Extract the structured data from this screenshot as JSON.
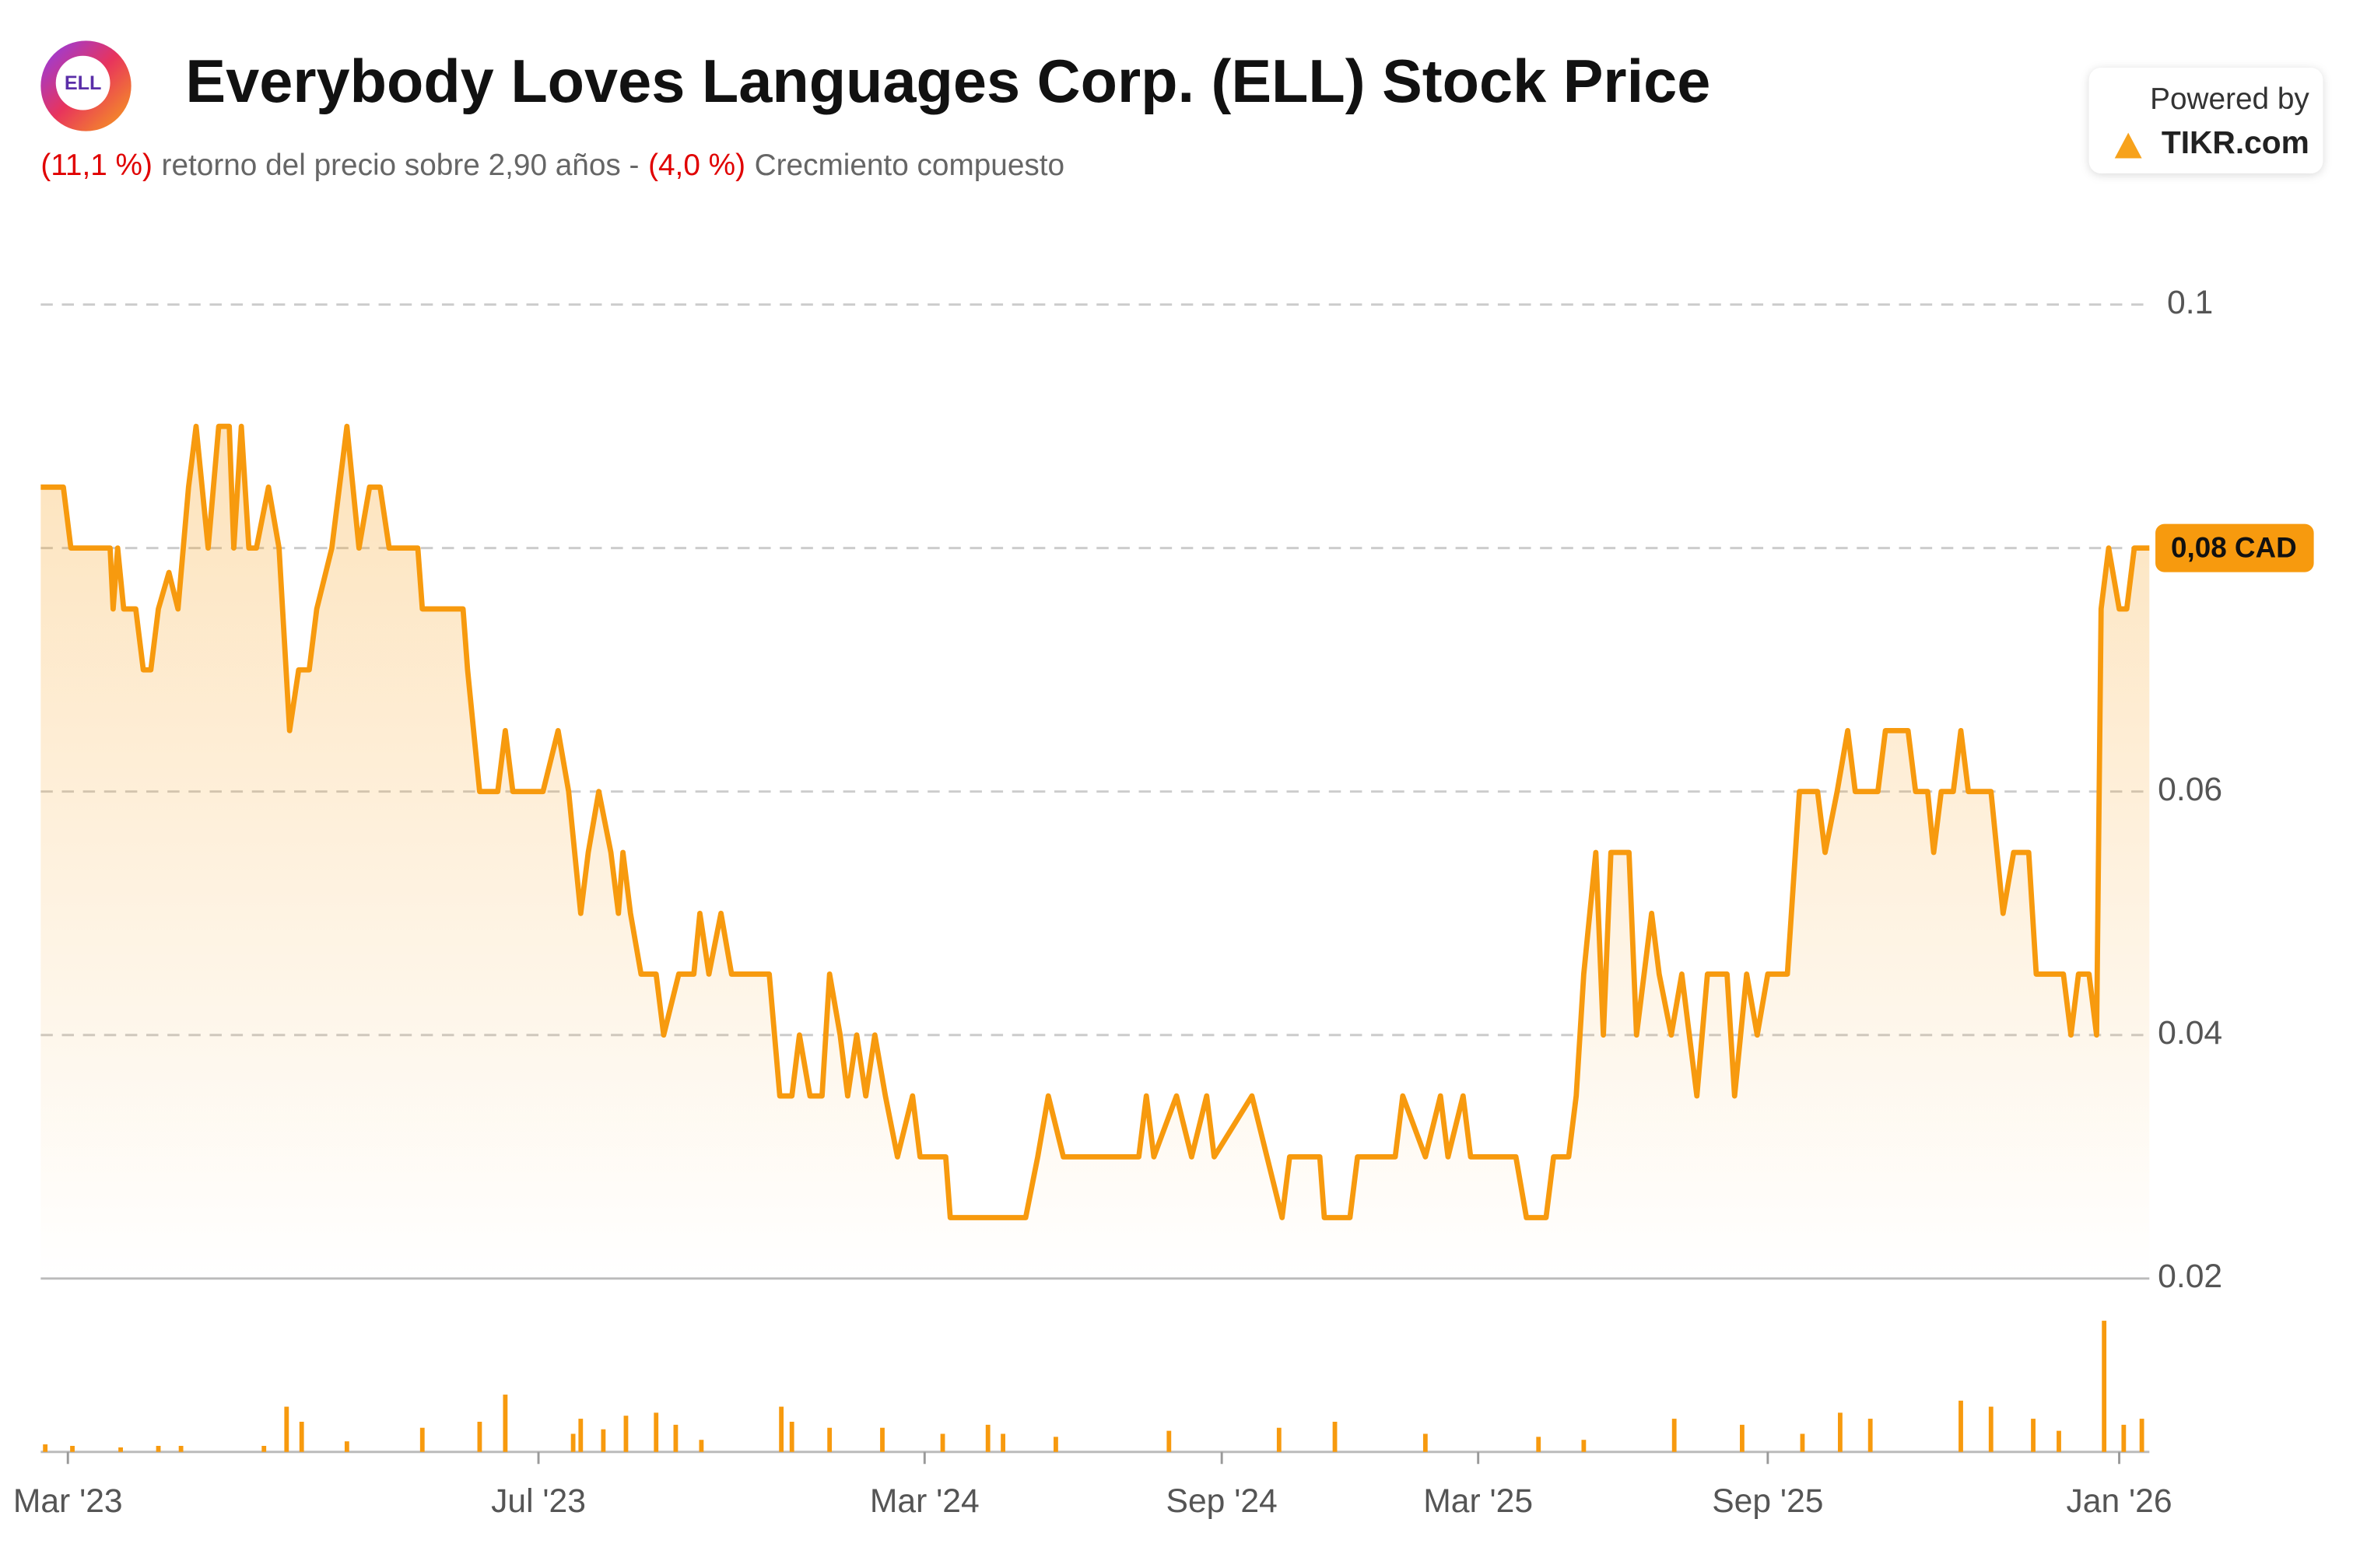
{
  "header": {
    "logo": "ELL",
    "title": "Everybody Loves Languages Corp. (ELL) Stock Price",
    "subtitle": {
      "return": "(11,1 %)",
      "text1": "retorno del precio sobre 2,90 años -",
      "cagr": "(4,0 %)",
      "text2": "Crecmiento compuesto"
    },
    "powered_by": "Powered by",
    "brand": "TIKR.com"
  },
  "chart_data": {
    "type": "line",
    "xlim": [
      0,
      1398
    ],
    "xticks": [
      {
        "value": 18,
        "label": "Mar '23"
      },
      {
        "value": 330,
        "label": "Jul '23"
      },
      {
        "value": 586,
        "label": "Mar '24"
      },
      {
        "value": 783,
        "label": "Sep '24"
      },
      {
        "value": 953,
        "label": "Mar '25"
      },
      {
        "value": 1145,
        "label": "Sep '25"
      },
      {
        "value": 1378,
        "label": "Jan '26"
      }
    ],
    "ylim": [
      0.02,
      0.1
    ],
    "yticks": [
      0.02,
      0.04,
      0.06,
      0.08,
      0.1
    ],
    "grid": true,
    "last_price": {
      "value": 0.08,
      "label": "0,08 CAD"
    },
    "series": [
      {
        "color": "#f79a0e",
        "x": [
          0,
          15,
          20,
          46,
          48,
          51,
          55,
          63,
          68,
          73,
          78,
          85,
          91,
          98,
          103,
          111,
          118,
          125,
          128,
          133,
          138,
          143,
          151,
          158,
          165,
          171,
          178,
          183,
          193,
          203,
          211,
          218,
          225,
          231,
          250,
          253,
          280,
          283,
          291,
          303,
          308,
          313,
          333,
          343,
          350,
          358,
          363,
          370,
          378,
          383,
          386,
          391,
          398,
          408,
          413,
          423,
          433,
          437,
          443,
          451,
          458,
          483,
          490,
          498,
          503,
          510,
          518,
          523,
          530,
          535,
          541,
          547,
          553,
          560,
          568,
          578,
          583,
          600,
          603,
          653,
          661,
          668,
          678,
          728,
          733,
          738,
          753,
          763,
          773,
          778,
          803,
          813,
          823,
          828,
          848,
          851,
          868,
          873,
          898,
          903,
          918,
          928,
          933,
          943,
          948,
          978,
          985,
          998,
          1003,
          1013,
          1018,
          1023,
          1031,
          1036,
          1041,
          1053,
          1058,
          1068,
          1073,
          1081,
          1088,
          1098,
          1105,
          1118,
          1123,
          1131,
          1138,
          1145,
          1158,
          1166,
          1178,
          1183,
          1191,
          1198,
          1203,
          1218,
          1223,
          1238,
          1243,
          1251,
          1255,
          1260,
          1268,
          1273,
          1278,
          1293,
          1301,
          1308,
          1318,
          1323,
          1341,
          1346,
          1351,
          1358,
          1363,
          1366,
          1371,
          1378,
          1383,
          1388,
          1398
        ],
        "values": [
          0.085,
          0.085,
          0.08,
          0.08,
          0.075,
          0.08,
          0.075,
          0.075,
          0.07,
          0.07,
          0.075,
          0.078,
          0.075,
          0.085,
          0.09,
          0.08,
          0.09,
          0.09,
          0.08,
          0.09,
          0.08,
          0.08,
          0.085,
          0.08,
          0.065,
          0.07,
          0.07,
          0.075,
          0.08,
          0.09,
          0.08,
          0.085,
          0.085,
          0.08,
          0.08,
          0.075,
          0.075,
          0.07,
          0.06,
          0.06,
          0.065,
          0.06,
          0.06,
          0.065,
          0.06,
          0.05,
          0.055,
          0.06,
          0.055,
          0.05,
          0.055,
          0.05,
          0.045,
          0.045,
          0.04,
          0.045,
          0.045,
          0.05,
          0.045,
          0.05,
          0.045,
          0.045,
          0.035,
          0.035,
          0.04,
          0.035,
          0.035,
          0.045,
          0.04,
          0.035,
          0.04,
          0.035,
          0.04,
          0.035,
          0.03,
          0.035,
          0.03,
          0.03,
          0.025,
          0.025,
          0.03,
          0.035,
          0.03,
          0.03,
          0.035,
          0.03,
          0.035,
          0.03,
          0.035,
          0.03,
          0.035,
          0.03,
          0.025,
          0.03,
          0.03,
          0.025,
          0.025,
          0.03,
          0.03,
          0.035,
          0.03,
          0.035,
          0.03,
          0.035,
          0.03,
          0.03,
          0.025,
          0.025,
          0.03,
          0.03,
          0.035,
          0.045,
          0.055,
          0.04,
          0.055,
          0.055,
          0.04,
          0.05,
          0.045,
          0.04,
          0.045,
          0.035,
          0.045,
          0.045,
          0.035,
          0.045,
          0.04,
          0.045,
          0.045,
          0.06,
          0.06,
          0.055,
          0.06,
          0.065,
          0.06,
          0.06,
          0.065,
          0.065,
          0.06,
          0.06,
          0.055,
          0.06,
          0.06,
          0.065,
          0.06,
          0.06,
          0.05,
          0.055,
          0.055,
          0.045,
          0.045,
          0.04,
          0.045,
          0.045,
          0.04,
          0.075,
          0.08,
          0.075,
          0.075,
          0.08,
          0.08
        ]
      }
    ],
    "volume": {
      "color": "#f79a0e",
      "y2lim": [
        0,
        90
      ],
      "x": [
        3,
        21,
        53,
        78,
        93,
        148,
        163,
        173,
        203,
        253,
        291,
        308,
        353,
        358,
        373,
        388,
        408,
        421,
        438,
        491,
        498,
        523,
        558,
        598,
        628,
        638,
        673,
        748,
        821,
        858,
        918,
        993,
        1023,
        1083,
        1128,
        1168,
        1193,
        1213,
        1273,
        1293,
        1321,
        1338,
        1368,
        1381,
        1393
      ],
      "values": [
        5,
        4,
        3,
        4,
        4,
        4,
        30,
        20,
        7,
        16,
        20,
        38,
        12,
        22,
        15,
        24,
        26,
        18,
        8,
        30,
        20,
        16,
        16,
        12,
        18,
        12,
        10,
        14,
        16,
        20,
        12,
        10,
        8,
        22,
        18,
        12,
        26,
        22,
        34,
        30,
        22,
        14,
        87,
        18,
        22
      ]
    }
  }
}
